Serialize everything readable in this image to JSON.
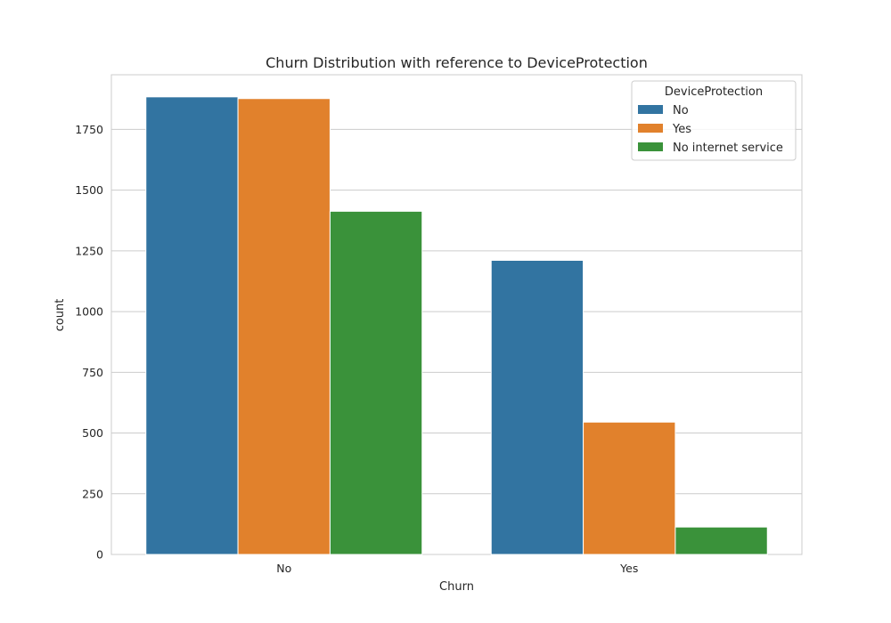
{
  "chart_data": {
    "type": "bar",
    "title": "Churn Distribution with reference to DeviceProtection",
    "xlabel": "Churn",
    "ylabel": "count",
    "categories": [
      "No",
      "Yes"
    ],
    "series": [
      {
        "name": "No",
        "values": [
          1884,
          1211
        ],
        "color": "#3274a1"
      },
      {
        "name": "Yes",
        "values": [
          1877,
          545
        ],
        "color": "#e1812c"
      },
      {
        "name": "No internet service",
        "values": [
          1413,
          113
        ],
        "color": "#3a923a"
      }
    ],
    "legend_title": "DeviceProtection",
    "legend_position": "top-right",
    "ylim": [
      0,
      1975
    ],
    "yticks": [
      0,
      250,
      500,
      750,
      1000,
      1250,
      1500,
      1750
    ],
    "grid": true
  }
}
